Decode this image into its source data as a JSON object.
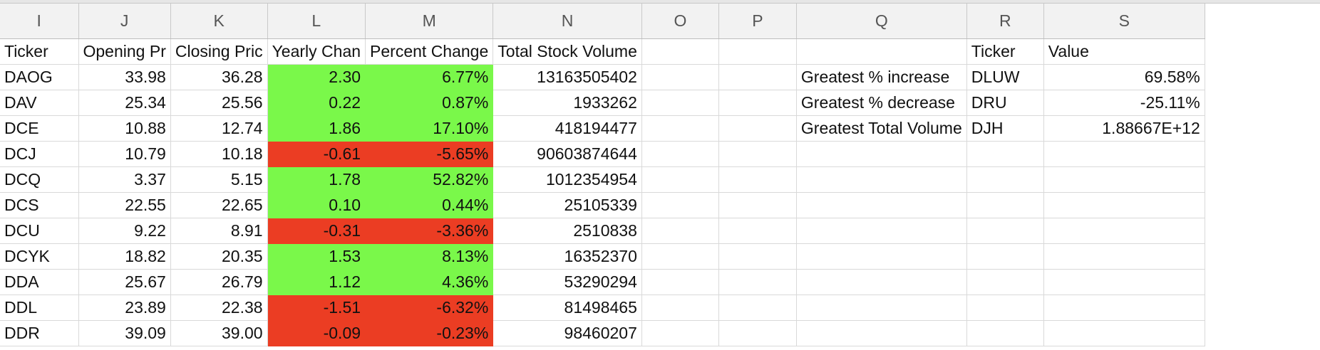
{
  "columns": [
    "I",
    "J",
    "K",
    "L",
    "M",
    "N",
    "O",
    "P",
    "Q",
    "R",
    "S"
  ],
  "header_row": {
    "ticker": "Ticker",
    "opening": "Opening Pr",
    "closing": "Closing Pric",
    "yearly": "Yearly Chan",
    "percent": "Percent Change",
    "volume": "Total Stock Volume",
    "summary_ticker": "Ticker",
    "summary_value": "Value"
  },
  "rows": [
    {
      "ticker": "DAOG",
      "open": "33.98",
      "close": "36.28",
      "yearly": "2.30",
      "percent": "6.77%",
      "volume": "13163505402",
      "status": "positive"
    },
    {
      "ticker": "DAV",
      "open": "25.34",
      "close": "25.56",
      "yearly": "0.22",
      "percent": "0.87%",
      "volume": "1933262",
      "status": "positive"
    },
    {
      "ticker": "DCE",
      "open": "10.88",
      "close": "12.74",
      "yearly": "1.86",
      "percent": "17.10%",
      "volume": "418194477",
      "status": "positive"
    },
    {
      "ticker": "DCJ",
      "open": "10.79",
      "close": "10.18",
      "yearly": "-0.61",
      "percent": "-5.65%",
      "volume": "90603874644",
      "status": "negative"
    },
    {
      "ticker": "DCQ",
      "open": "3.37",
      "close": "5.15",
      "yearly": "1.78",
      "percent": "52.82%",
      "volume": "1012354954",
      "status": "positive"
    },
    {
      "ticker": "DCS",
      "open": "22.55",
      "close": "22.65",
      "yearly": "0.10",
      "percent": "0.44%",
      "volume": "25105339",
      "status": "positive"
    },
    {
      "ticker": "DCU",
      "open": "9.22",
      "close": "8.91",
      "yearly": "-0.31",
      "percent": "-3.36%",
      "volume": "2510838",
      "status": "negative"
    },
    {
      "ticker": "DCYK",
      "open": "18.82",
      "close": "20.35",
      "yearly": "1.53",
      "percent": "8.13%",
      "volume": "16352370",
      "status": "positive"
    },
    {
      "ticker": "DDA",
      "open": "25.67",
      "close": "26.79",
      "yearly": "1.12",
      "percent": "4.36%",
      "volume": "53290294",
      "status": "positive"
    },
    {
      "ticker": "DDL",
      "open": "23.89",
      "close": "22.38",
      "yearly": "-1.51",
      "percent": "-6.32%",
      "volume": "81498465",
      "status": "negative"
    },
    {
      "ticker": "DDR",
      "open": "39.09",
      "close": "39.00",
      "yearly": "-0.09",
      "percent": "-0.23%",
      "volume": "98460207",
      "status": "negative"
    }
  ],
  "summary": [
    {
      "label": "Greatest % increase",
      "ticker": "DLUW",
      "value": "69.58%"
    },
    {
      "label": "Greatest % decrease",
      "ticker": "DRU",
      "value": "-25.11%"
    },
    {
      "label": "Greatest Total Volume",
      "ticker": "DJH",
      "value": "1.88667E+12"
    }
  ],
  "colors": {
    "positive": "#7af84a",
    "negative": "#eb3d23"
  }
}
